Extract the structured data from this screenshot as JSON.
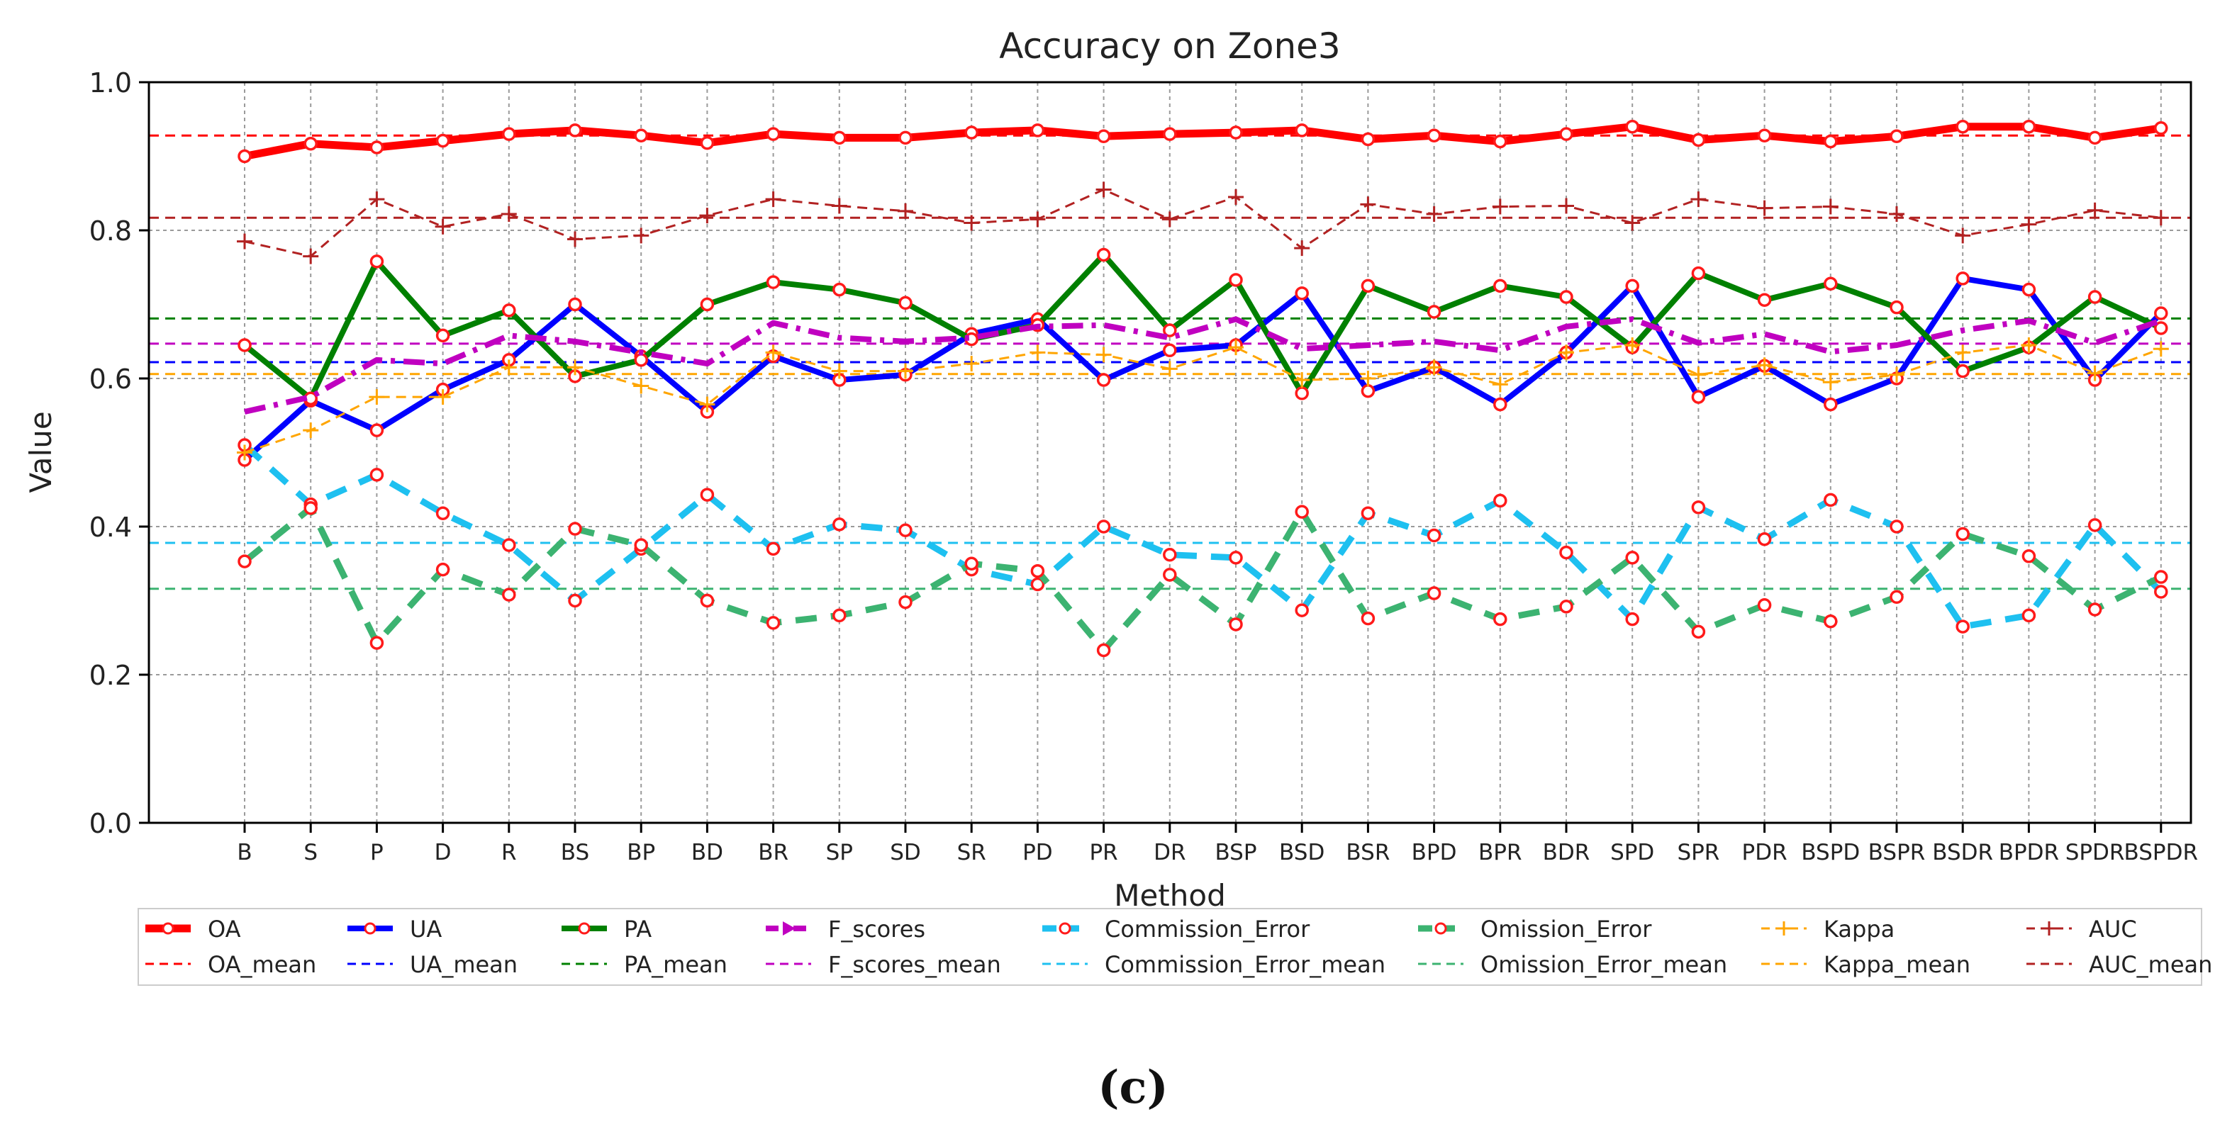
{
  "chart_data": {
    "type": "line",
    "title": "Accuracy on Zone3",
    "xlabel": "Method",
    "ylabel": "Value",
    "ylim": [
      0.0,
      1.0
    ],
    "yticks": [
      0.0,
      0.2,
      0.4,
      0.6,
      0.8,
      1.0
    ],
    "ytick_labels": [
      "0.0",
      "0.2",
      "0.4",
      "0.6",
      "0.8",
      "1.0"
    ],
    "grid": true,
    "legend_position": "below",
    "categories": [
      "B",
      "S",
      "P",
      "D",
      "R",
      "BS",
      "BP",
      "BD",
      "BR",
      "SP",
      "SD",
      "SR",
      "PD",
      "PR",
      "DR",
      "BSP",
      "BSD",
      "BSR",
      "BPD",
      "BPR",
      "BDR",
      "SPD",
      "SPR",
      "PDR",
      "BSPD",
      "BSPR",
      "BSDR",
      "BPDR",
      "SPDR",
      "BSPDR"
    ],
    "series": [
      {
        "name": "OA",
        "color": "#ff0000",
        "style": "solid-thick",
        "markers": true,
        "values": [
          0.9,
          0.917,
          0.912,
          0.921,
          0.93,
          0.935,
          0.928,
          0.918,
          0.93,
          0.925,
          0.925,
          0.932,
          0.935,
          0.927,
          0.93,
          0.932,
          0.935,
          0.923,
          0.928,
          0.92,
          0.93,
          0.94,
          0.922,
          0.928,
          0.92,
          0.927,
          0.94,
          0.94,
          0.925,
          0.938
        ]
      },
      {
        "name": "UA",
        "color": "#0000ff",
        "style": "solid",
        "markers": true,
        "values": [
          0.49,
          0.57,
          0.53,
          0.585,
          0.625,
          0.7,
          0.63,
          0.555,
          0.63,
          0.598,
          0.605,
          0.66,
          0.68,
          0.598,
          0.638,
          0.645,
          0.715,
          0.583,
          0.615,
          0.565,
          0.635,
          0.725,
          0.575,
          0.617,
          0.565,
          0.6,
          0.735,
          0.72,
          0.598,
          0.688
        ]
      },
      {
        "name": "PA",
        "color": "#008000",
        "style": "solid",
        "markers": true,
        "values": [
          0.645,
          0.573,
          0.758,
          0.658,
          0.692,
          0.603,
          0.625,
          0.7,
          0.73,
          0.72,
          0.702,
          0.653,
          0.672,
          0.767,
          0.665,
          0.733,
          0.58,
          0.725,
          0.69,
          0.725,
          0.71,
          0.642,
          0.742,
          0.706,
          0.728,
          0.696,
          0.61,
          0.642,
          0.71,
          0.668
        ]
      },
      {
        "name": "F_scores",
        "color": "#c000c0",
        "style": "dashdot",
        "markers": false,
        "values": [
          0.555,
          0.575,
          0.625,
          0.62,
          0.658,
          0.65,
          0.635,
          0.62,
          0.675,
          0.655,
          0.65,
          0.655,
          0.67,
          0.672,
          0.655,
          0.68,
          0.64,
          0.645,
          0.65,
          0.638,
          0.67,
          0.68,
          0.648,
          0.66,
          0.636,
          0.645,
          0.665,
          0.678,
          0.648,
          0.678
        ]
      },
      {
        "name": "Commission_Error",
        "color": "#1ec0f0",
        "style": "dashed-thick",
        "markers": true,
        "values": [
          0.51,
          0.43,
          0.47,
          0.418,
          0.375,
          0.3,
          0.37,
          0.443,
          0.37,
          0.403,
          0.395,
          0.342,
          0.322,
          0.4,
          0.362,
          0.358,
          0.287,
          0.418,
          0.388,
          0.435,
          0.365,
          0.275,
          0.426,
          0.383,
          0.436,
          0.4,
          0.265,
          0.28,
          0.402,
          0.312
        ]
      },
      {
        "name": "Omission_Error",
        "color": "#3cb371",
        "style": "dashed-thick",
        "markers": true,
        "values": [
          0.353,
          0.425,
          0.243,
          0.342,
          0.308,
          0.397,
          0.375,
          0.3,
          0.27,
          0.28,
          0.298,
          0.35,
          0.34,
          0.233,
          0.335,
          0.268,
          0.42,
          0.276,
          0.31,
          0.275,
          0.292,
          0.358,
          0.258,
          0.294,
          0.272,
          0.305,
          0.39,
          0.36,
          0.288,
          0.332
        ]
      },
      {
        "name": "Kappa",
        "color": "#ffa500",
        "style": "dashed-thin",
        "markers": false,
        "plus_markers": true,
        "values": [
          0.5,
          0.53,
          0.575,
          0.575,
          0.615,
          0.615,
          0.59,
          0.565,
          0.635,
          0.61,
          0.61,
          0.62,
          0.635,
          0.632,
          0.613,
          0.642,
          0.598,
          0.6,
          0.615,
          0.592,
          0.635,
          0.645,
          0.605,
          0.618,
          0.595,
          0.605,
          0.635,
          0.645,
          0.607,
          0.64
        ]
      },
      {
        "name": "AUC",
        "color": "#b22222",
        "style": "dashed-thin",
        "markers": false,
        "plus_markers": true,
        "values": [
          0.785,
          0.765,
          0.842,
          0.805,
          0.822,
          0.788,
          0.793,
          0.82,
          0.842,
          0.833,
          0.826,
          0.81,
          0.815,
          0.855,
          0.815,
          0.845,
          0.776,
          0.835,
          0.822,
          0.832,
          0.833,
          0.81,
          0.842,
          0.83,
          0.832,
          0.822,
          0.793,
          0.808,
          0.827,
          0.817
        ]
      }
    ],
    "means": [
      {
        "name": "OA_mean",
        "color": "#ff0000",
        "value": 0.928
      },
      {
        "name": "UA_mean",
        "color": "#0000ff",
        "value": 0.622
      },
      {
        "name": "PA_mean",
        "color": "#008000",
        "value": 0.681
      },
      {
        "name": "F_scores_mean",
        "color": "#c000c0",
        "value": 0.647
      },
      {
        "name": "Commission_Error_mean",
        "color": "#1ec0f0",
        "value": 0.378
      },
      {
        "name": "Omission_Error_mean",
        "color": "#3cb371",
        "value": 0.316
      },
      {
        "name": "Kappa_mean",
        "color": "#ffa500",
        "value": 0.606
      },
      {
        "name": "AUC_mean",
        "color": "#b22222",
        "value": 0.817
      }
    ],
    "legend": [
      {
        "label": "OA",
        "series": "OA"
      },
      {
        "label": "UA",
        "series": "UA"
      },
      {
        "label": "PA",
        "series": "PA"
      },
      {
        "label": "F_scores",
        "series": "F_scores"
      },
      {
        "label": "Commission_Error",
        "series": "Commission_Error"
      },
      {
        "label": "Omission_Error",
        "series": "Omission_Error"
      },
      {
        "label": "Kappa",
        "series": "Kappa"
      },
      {
        "label": "AUC",
        "series": "AUC"
      },
      {
        "label": "OA_mean",
        "series": "OA_mean"
      },
      {
        "label": "UA_mean",
        "series": "UA_mean"
      },
      {
        "label": "PA_mean",
        "series": "PA_mean"
      },
      {
        "label": "F_scores_mean",
        "series": "F_scores_mean"
      },
      {
        "label": "Commission_Error_mean",
        "series": "Commission_Error_mean"
      },
      {
        "label": "Omission_Error_mean",
        "series": "Omission_Error_mean"
      },
      {
        "label": "Kappa_mean",
        "series": "Kappa_mean"
      },
      {
        "label": "AUC_mean",
        "series": "AUC_mean"
      }
    ]
  },
  "caption": "(c)"
}
